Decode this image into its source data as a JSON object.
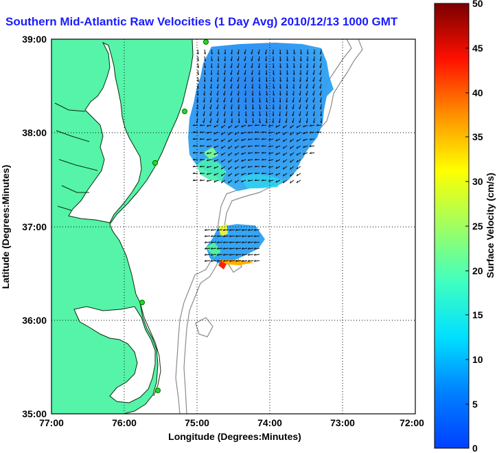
{
  "title": "Southern Mid-Atlantic Raw Velocities (1 Day Avg) 2010/12/13 1000 GMT",
  "x_axis": {
    "label": "Longitude (Degrees:Minutes)",
    "ticks": [
      "77:00",
      "76:00",
      "75:00",
      "74:00",
      "73:00",
      "72:00"
    ]
  },
  "y_axis": {
    "label": "Latitude (Degrees:Minutes)",
    "ticks": [
      "39:00",
      "38:00",
      "37:00",
      "36:00",
      "35:00"
    ]
  },
  "colorbar": {
    "label": "Surface Velocity (cm/s)",
    "ticks": [
      "50",
      "45",
      "40",
      "35",
      "30",
      "25",
      "20",
      "15",
      "10",
      "5",
      "0"
    ]
  },
  "colors": {
    "land": "#55f4a8",
    "title": "#1a1aff",
    "coast": "#0a2a0a",
    "bathymetry": "#8a8a8a",
    "station": "#22dd22"
  }
}
